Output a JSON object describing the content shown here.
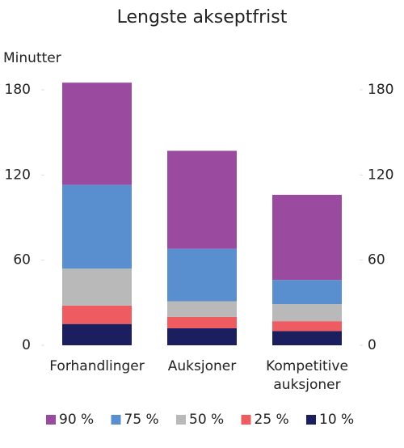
{
  "chart_data": {
    "type": "stacked-bar",
    "title": "Lengste akseptfrist",
    "y_label": "Minutter",
    "categories": [
      "Forhandlinger",
      "Auksjoner",
      "Kompetitive auksjoner"
    ],
    "series": [
      {
        "name": "10 %",
        "color": "#1c1f5f",
        "values": [
          15,
          12,
          10
        ]
      },
      {
        "name": "25 %",
        "color": "#ee5b61",
        "values": [
          13,
          8,
          7
        ]
      },
      {
        "name": "50 %",
        "color": "#b9b9b9",
        "values": [
          26,
          11,
          12
        ]
      },
      {
        "name": "75 %",
        "color": "#5a8fcf",
        "values": [
          59,
          37,
          17
        ]
      },
      {
        "name": "90 %",
        "color": "#9a4a9f",
        "values": [
          72,
          69,
          60
        ]
      }
    ],
    "ylim": [
      0,
      180
    ],
    "yticks": [
      0,
      60,
      120,
      180
    ],
    "y2lim": [
      0,
      180
    ],
    "y2ticks": [
      0,
      60,
      120,
      180
    ],
    "grid": false,
    "legend": "bottom"
  }
}
